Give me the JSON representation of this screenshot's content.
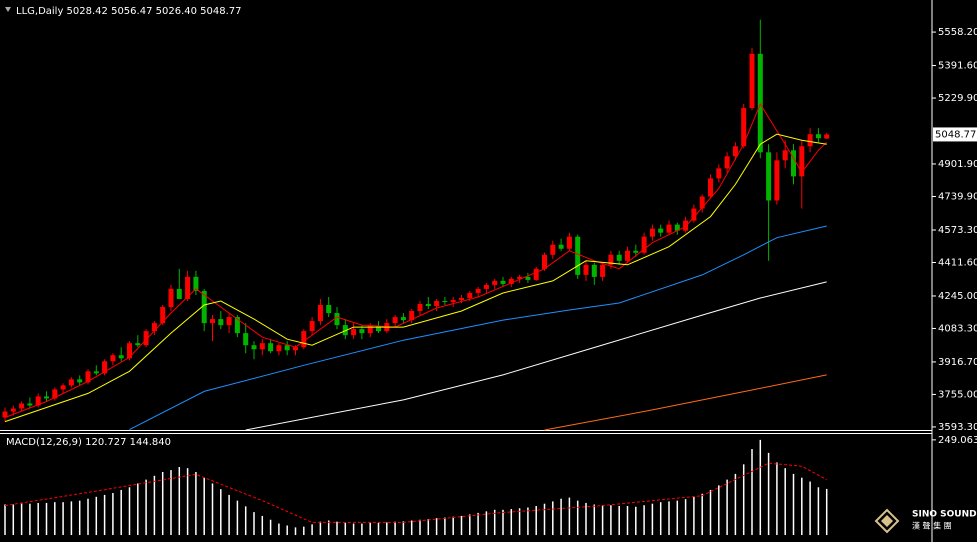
{
  "chart_data": [
    {
      "type": "candlestick",
      "title": "LLG,Daily 5028.42 5056.47 5026.40 5048.77",
      "up_color": "#ff0000",
      "down_color": "#00b400",
      "open": [
        3640,
        3670,
        3685,
        3710,
        3700,
        3745,
        3735,
        3780,
        3800,
        3830,
        3815,
        3870,
        3860,
        3920,
        3950,
        3935,
        4010,
        4000,
        4070,
        4110,
        4190,
        4280,
        4230,
        4340,
        4270,
        4110,
        4130,
        4100,
        4140,
        4060,
        4000,
        3980,
        4010,
        3970,
        4000,
        3975,
        3990,
        4070,
        4120,
        4200,
        4160,
        4100,
        4050,
        4080,
        4060,
        4095,
        4070,
        4110,
        4140,
        4125,
        4170,
        4205,
        4195,
        4220,
        4215,
        4225,
        4235,
        4260,
        4280,
        4300,
        4320,
        4305,
        4330,
        4340,
        4325,
        4380,
        4450,
        4500,
        4480,
        4540,
        4350,
        4400,
        4340,
        4400,
        4450,
        4420,
        4470,
        4460,
        4540,
        4580,
        4560,
        4600,
        4570,
        4620,
        4680,
        4740,
        4830,
        4880,
        4940,
        4990,
        5180,
        5450,
        4960,
        4720,
        4920,
        4970,
        4840,
        4990,
        5050,
        5028.42
      ],
      "high": [
        3690,
        3700,
        3720,
        3740,
        3760,
        3770,
        3790,
        3810,
        3840,
        3850,
        3880,
        3900,
        3930,
        3960,
        3990,
        4020,
        4050,
        4080,
        4120,
        4200,
        4300,
        4380,
        4370,
        4370,
        4280,
        4150,
        4170,
        4160,
        4150,
        4110,
        4020,
        4030,
        4030,
        4010,
        4020,
        4000,
        4080,
        4140,
        4230,
        4240,
        4190,
        4130,
        4110,
        4100,
        4110,
        4120,
        4130,
        4150,
        4160,
        4180,
        4220,
        4240,
        4230,
        4240,
        4240,
        4250,
        4270,
        4290,
        4310,
        4330,
        4340,
        4340,
        4350,
        4360,
        4390,
        4460,
        4520,
        4530,
        4560,
        4550,
        4420,
        4410,
        4410,
        4470,
        4470,
        4490,
        4500,
        4560,
        4600,
        4600,
        4620,
        4610,
        4640,
        4700,
        4750,
        4850,
        4900,
        4960,
        5010,
        5200,
        5480,
        5620,
        5000,
        4960,
        5020,
        5000,
        5020,
        5080,
        5080,
        5056.47
      ],
      "low": [
        3620,
        3650,
        3670,
        3690,
        3690,
        3720,
        3725,
        3760,
        3790,
        3800,
        3805,
        3850,
        3850,
        3900,
        3920,
        3925,
        3990,
        3990,
        4050,
        4100,
        4170,
        4250,
        4220,
        4250,
        4070,
        4020,
        4080,
        4060,
        4040,
        3960,
        3930,
        3950,
        3960,
        3950,
        3950,
        3950,
        3980,
        4050,
        4100,
        4140,
        4080,
        4030,
        4030,
        4030,
        4040,
        4060,
        4060,
        4090,
        4110,
        4110,
        4150,
        4180,
        4170,
        4200,
        4190,
        4210,
        4220,
        4240,
        4260,
        4280,
        4290,
        4290,
        4310,
        4310,
        4320,
        4370,
        4430,
        4470,
        4470,
        4330,
        4320,
        4300,
        4320,
        4380,
        4400,
        4410,
        4440,
        4450,
        4520,
        4540,
        4550,
        4550,
        4560,
        4610,
        4660,
        4730,
        4810,
        4860,
        4920,
        4980,
        5170,
        4930,
        4420,
        4700,
        4880,
        4800,
        4680,
        4960,
        5010,
        5026.4
      ],
      "close": [
        3670,
        3685,
        3710,
        3700,
        3745,
        3735,
        3780,
        3800,
        3830,
        3815,
        3870,
        3860,
        3920,
        3950,
        3935,
        4010,
        4000,
        4070,
        4110,
        4190,
        4280,
        4230,
        4340,
        4270,
        4110,
        4130,
        4100,
        4140,
        4060,
        4000,
        3980,
        4010,
        3970,
        4000,
        3975,
        3990,
        4070,
        4120,
        4200,
        4160,
        4100,
        4050,
        4080,
        4060,
        4095,
        4070,
        4110,
        4140,
        4125,
        4170,
        4205,
        4195,
        4220,
        4215,
        4225,
        4235,
        4260,
        4280,
        4300,
        4320,
        4305,
        4330,
        4340,
        4325,
        4380,
        4450,
        4500,
        4480,
        4540,
        4350,
        4400,
        4340,
        4400,
        4450,
        4420,
        4470,
        4460,
        4540,
        4580,
        4560,
        4600,
        4570,
        4620,
        4680,
        4740,
        4830,
        4880,
        4940,
        4990,
        5180,
        5450,
        4960,
        4720,
        4920,
        4970,
        4840,
        4990,
        5050,
        5030,
        5048.77
      ],
      "overlays": [
        {
          "color": "#ff0000",
          "x": [
            0,
            5,
            10,
            15,
            20,
            23,
            25,
            28,
            31,
            35,
            38,
            40,
            43,
            47,
            52,
            57,
            61,
            65,
            68,
            71,
            74,
            78,
            82,
            86,
            89,
            91,
            94,
            96,
            98,
            99
          ],
          "values": [
            3640,
            3720,
            3820,
            3940,
            4160,
            4280,
            4220,
            4130,
            4040,
            3990,
            4080,
            4140,
            4100,
            4090,
            4185,
            4240,
            4310,
            4380,
            4470,
            4420,
            4380,
            4510,
            4590,
            4780,
            5000,
            5200,
            5000,
            4860,
            4970,
            5010
          ]
        },
        {
          "color": "#ffff00",
          "x": [
            0,
            10,
            15,
            20,
            24,
            26,
            30,
            34,
            37,
            42,
            48,
            55,
            60,
            66,
            70,
            75,
            80,
            85,
            88,
            91,
            93,
            96,
            99
          ],
          "values": [
            3620,
            3760,
            3870,
            4060,
            4200,
            4220,
            4130,
            4030,
            4000,
            4090,
            4090,
            4170,
            4260,
            4320,
            4420,
            4400,
            4490,
            4640,
            4800,
            5000,
            5050,
            5020,
            5000
          ]
        },
        {
          "color": "#1e90ff",
          "x": [
            15,
            24,
            36,
            48,
            60,
            68,
            74,
            84,
            89,
            93,
            99
          ],
          "values": [
            3580,
            3770,
            3900,
            4025,
            4125,
            4175,
            4210,
            4350,
            4450,
            4535,
            4593
          ]
        },
        {
          "color": "#ffffff",
          "x": [
            29,
            48,
            60,
            72,
            84,
            91,
            99
          ],
          "values": [
            3578,
            3728,
            3852,
            4001,
            4150,
            4235,
            4315
          ]
        },
        {
          "color": "#ff6a1a",
          "x": [
            65,
            78,
            90,
            99
          ],
          "values": [
            3578,
            3678,
            3777,
            3852
          ]
        }
      ],
      "ylim": [
        3578,
        5678
      ],
      "yticks": [
        {
          "value": 5558.2,
          "label": "5558.20"
        },
        {
          "value": 5391.6,
          "label": "5391.60"
        },
        {
          "value": 5229.9,
          "label": "5229.90"
        },
        {
          "value": 4901.9,
          "label": "4901.90"
        },
        {
          "value": 4739.9,
          "label": "4739.90"
        },
        {
          "value": 4573.3,
          "label": "4573.30"
        },
        {
          "value": 4411.6,
          "label": "4411.60"
        },
        {
          "value": 4245,
          "label": "4245.00"
        },
        {
          "value": 4083.3,
          "label": "4083.30"
        },
        {
          "value": 3916.7,
          "label": "3916.70"
        },
        {
          "value": 3755,
          "label": "3755.00"
        },
        {
          "value": 3593.3,
          "label": "3593.30"
        }
      ],
      "last_price": 5048.77
    },
    {
      "type": "macd",
      "title": "MACD(12,26,9) 120.727 144.840",
      "color": "#ffffff",
      "values": [
        80,
        80,
        82,
        82,
        84,
        84,
        86,
        86,
        88,
        90,
        95,
        100,
        105,
        110,
        118,
        125,
        135,
        145,
        155,
        165,
        170,
        178,
        175,
        165,
        150,
        135,
        120,
        105,
        90,
        75,
        60,
        50,
        40,
        30,
        25,
        20,
        22,
        28,
        35,
        38,
        35,
        32,
        30,
        30,
        32,
        32,
        33,
        35,
        36,
        38,
        40,
        42,
        44,
        46,
        48,
        50,
        54,
        58,
        62,
        66,
        66,
        68,
        70,
        72,
        76,
        82,
        88,
        95,
        98,
        90,
        84,
        80,
        78,
        78,
        76,
        76,
        74,
        78,
        82,
        86,
        88,
        90,
        94,
        100,
        108,
        118,
        130,
        145,
        160,
        185,
        225,
        249,
        215,
        190,
        175,
        160,
        150,
        140,
        125,
        120.727
      ],
      "signal": {
        "color": "#ff0000",
        "x": [
          0,
          11,
          23,
          31,
          37,
          48,
          60,
          72,
          84,
          92,
          96,
          99
        ],
        "values": [
          77,
          115,
          159,
          90,
          33,
          33,
          59,
          77,
          103,
          188,
          180,
          144.84
        ]
      },
      "ylim": [
        -13,
        267
      ],
      "yticks": [
        249.063
      ]
    }
  ],
  "watermark": {
    "title": "SINO SOUND",
    "subtitle": "漢 聲 集 團"
  }
}
